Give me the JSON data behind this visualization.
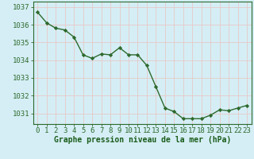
{
  "x": [
    0,
    1,
    2,
    3,
    4,
    5,
    6,
    7,
    8,
    9,
    10,
    11,
    12,
    13,
    14,
    15,
    16,
    17,
    18,
    19,
    20,
    21,
    22,
    23
  ],
  "y": [
    1036.7,
    1036.1,
    1035.8,
    1035.7,
    1035.3,
    1034.3,
    1034.1,
    1034.35,
    1034.3,
    1034.7,
    1034.3,
    1034.3,
    1033.7,
    1032.5,
    1031.3,
    1031.1,
    1030.7,
    1030.7,
    1030.7,
    1030.9,
    1031.2,
    1031.15,
    1031.3,
    1031.45
  ],
  "line_color": "#2d6a2d",
  "marker_color": "#2d6a2d",
  "bg_color": "#d5eef5",
  "grid_color": "#e8c8c8",
  "xlabel": "Graphe pression niveau de la mer (hPa)",
  "xlabel_color": "#1a5c1a",
  "ylabel_ticks": [
    1031,
    1032,
    1033,
    1034,
    1035,
    1036,
    1037
  ],
  "xlim": [
    -0.5,
    23.5
  ],
  "ylim": [
    1030.4,
    1037.3
  ],
  "tick_color": "#2d6a2d",
  "xlabel_fontsize": 7,
  "tick_fontsize": 6.5
}
